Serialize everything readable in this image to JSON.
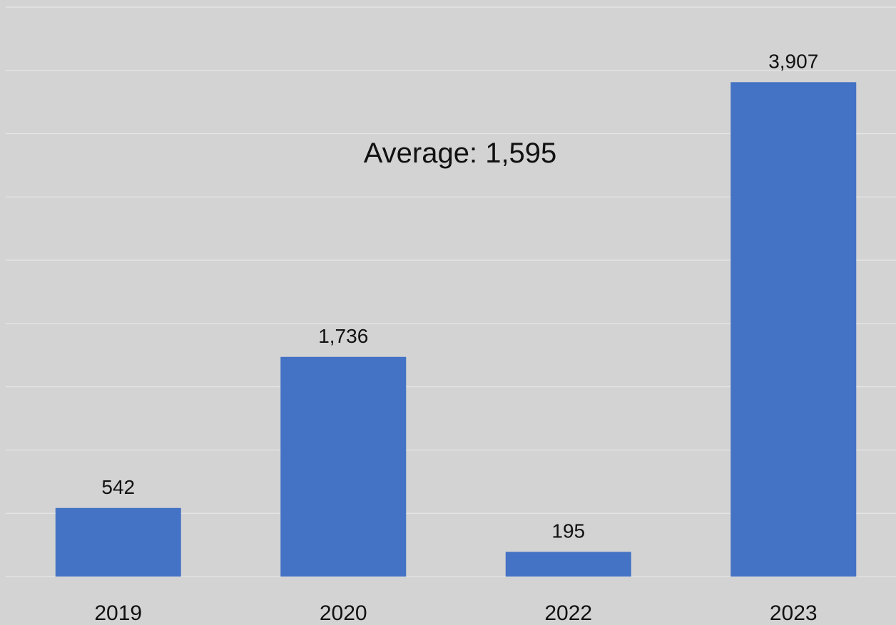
{
  "chart_data": {
    "type": "bar",
    "categories": [
      "2019",
      "2020",
      "2022",
      "2023"
    ],
    "values": [
      542,
      1736,
      195,
      3907
    ],
    "data_labels": [
      "542",
      "1,736",
      "195",
      "3,907"
    ],
    "annotation": "Average: 1,595",
    "ylim": [
      0,
      4500
    ],
    "grid": true,
    "legend": "none",
    "bar_color": "#4472c4",
    "background_color": "#d3d3d3",
    "gridline_color": "#e6e6e6"
  }
}
